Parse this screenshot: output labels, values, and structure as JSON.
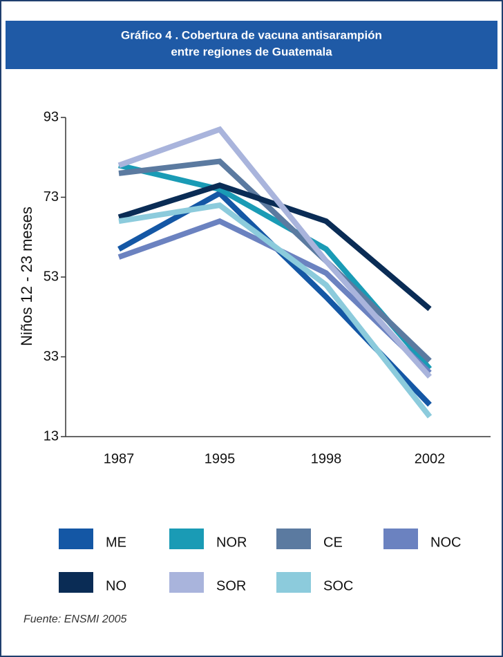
{
  "chart_data": {
    "type": "line",
    "title_lines": [
      "Gráfico 4 . Cobertura de vacuna antisarampión",
      "entre regiones de Guatemala"
    ],
    "y_label": "Niños 12 - 23 meses",
    "categories": [
      "1987",
      "1995",
      "1998",
      "2002"
    ],
    "ylim": [
      13,
      93
    ],
    "yticks": [
      13,
      33,
      53,
      73,
      93
    ],
    "series": [
      {
        "name": "ME",
        "color": "#1457a5",
        "values": [
          60,
          74,
          48,
          21
        ]
      },
      {
        "name": "NOR",
        "color": "#1a9bb5",
        "values": [
          81,
          75,
          60,
          30
        ]
      },
      {
        "name": "CE",
        "color": "#5b7aa0",
        "values": [
          79,
          82,
          57,
          32
        ]
      },
      {
        "name": "NOC",
        "color": "#6b82c0",
        "values": [
          58,
          67,
          54,
          29
        ]
      },
      {
        "name": "NO",
        "color": "#0a2c55",
        "values": [
          68,
          76,
          67,
          45
        ]
      },
      {
        "name": "SOR",
        "color": "#a9b4dc",
        "values": [
          81,
          90,
          57,
          28
        ]
      },
      {
        "name": "SOC",
        "color": "#8ccbdc",
        "values": [
          67,
          71,
          51,
          18
        ]
      }
    ],
    "source": "Fuente: ENSMI 2005"
  }
}
